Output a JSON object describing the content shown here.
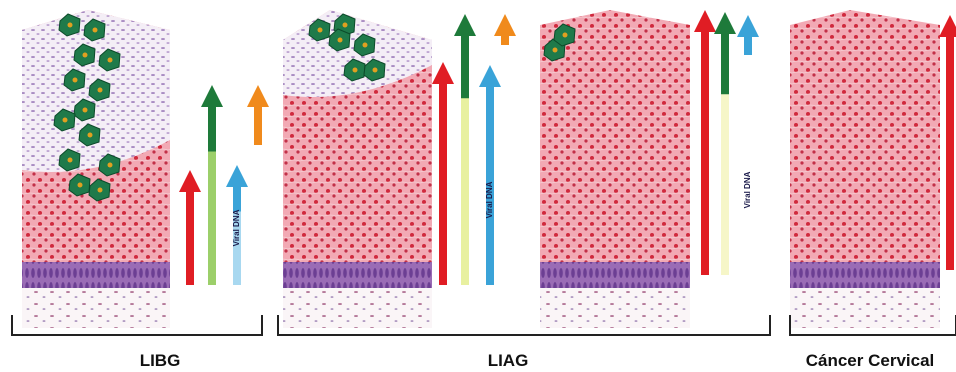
{
  "stages": [
    {
      "label": "LIBG"
    },
    {
      "label": "LIAG"
    },
    {
      "label": "Cáncer Cervical"
    }
  ],
  "arrow_labels": [
    "Viral DNA",
    "Viral DNA",
    "Viral DNA"
  ]
}
